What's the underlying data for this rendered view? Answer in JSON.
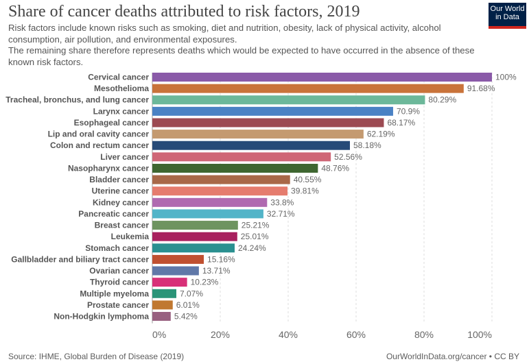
{
  "header": {
    "title": "Share of cancer deaths attributed to risk factors, 2019",
    "subtitle_1": "Risk factors include known risks such as smoking, diet and nutrition, obesity, lack of physical activity, alcohol consumption, air pollution, and environmental exposures.",
    "subtitle_2": "The remaining share therefore represents deaths which would be expected to have occurred in the absence of these known risk factors.",
    "logo_line1": "Our World",
    "logo_line2": "in Data"
  },
  "footer": {
    "source": "Source: IHME, Global Burden of Disease (2019)",
    "license": "OurWorldInData.org/cancer • CC BY"
  },
  "chart_data": {
    "type": "bar",
    "orientation": "horizontal",
    "title": "Share of cancer deaths attributed to risk factors, 2019",
    "xlim": [
      0,
      100
    ],
    "xticks": [
      "0%",
      "20%",
      "40%",
      "60%",
      "80%",
      "100%"
    ],
    "grid": "vertical dashed",
    "categories": [
      "Cervical cancer",
      "Mesothelioma",
      "Tracheal, bronchus, and lung cancer",
      "Larynx cancer",
      "Esophageal cancer",
      "Lip and oral cavity cancer",
      "Colon and rectum cancer",
      "Liver cancer",
      "Nasopharynx cancer",
      "Bladder cancer",
      "Uterine cancer",
      "Kidney cancer",
      "Pancreatic cancer",
      "Breast cancer",
      "Leukemia",
      "Stomach cancer",
      "Gallbladder and biliary tract cancer",
      "Ovarian cancer",
      "Thyroid cancer",
      "Multiple myeloma",
      "Prostate cancer",
      "Non-Hodgkin lymphoma"
    ],
    "values": [
      100,
      91.68,
      80.29,
      70.9,
      68.17,
      62.19,
      58.18,
      52.56,
      48.76,
      40.55,
      39.81,
      33.8,
      32.71,
      25.21,
      25.01,
      24.24,
      15.16,
      13.71,
      10.23,
      7.07,
      6.01,
      5.42
    ],
    "labels": [
      "100%",
      "91.68%",
      "80.29%",
      "70.9%",
      "68.17%",
      "62.19%",
      "58.18%",
      "52.56%",
      "48.76%",
      "40.55%",
      "39.81%",
      "33.8%",
      "32.71%",
      "25.21%",
      "25.01%",
      "24.24%",
      "15.16%",
      "13.71%",
      "10.23%",
      "7.07%",
      "6.01%",
      "5.42%"
    ],
    "colors": [
      "#8a5aa8",
      "#c9733a",
      "#6cb89a",
      "#4a82c4",
      "#9c4a52",
      "#c49a70",
      "#264a78",
      "#cf6676",
      "#3e6630",
      "#a86848",
      "#e57c6e",
      "#b06ab0",
      "#52b4c8",
      "#6e9460",
      "#a8205e",
      "#2a9090",
      "#c05030",
      "#6078a8",
      "#d83078",
      "#2a9478",
      "#c07830",
      "#986080"
    ]
  }
}
